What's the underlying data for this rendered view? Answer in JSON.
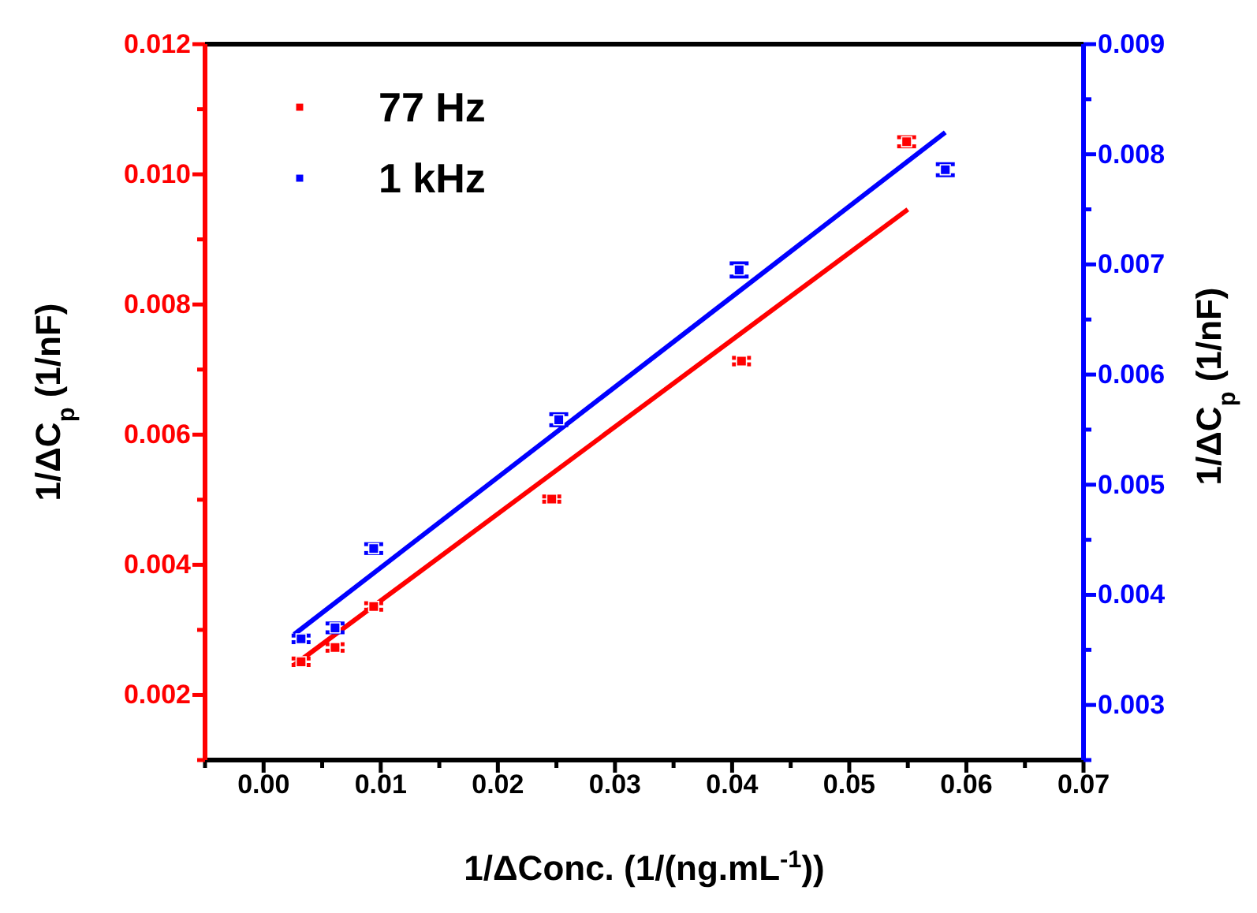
{
  "chart_data": {
    "type": "scatter",
    "xlabel": "1/ΔConc. (1/(ng.mL$^{-1}$))",
    "ylabel": "1/ΔC$_{p}$ (1/nF)",
    "y2label": "1/ΔC$_{p}$ (1/nF)",
    "xlim": [
      -0.005,
      0.07
    ],
    "xticks": [
      {
        "value": -0.005,
        "label": null
      },
      "0.00",
      {
        "value": 0.005,
        "label": null
      },
      {
        "value": 0.01,
        "label": "0.01"
      },
      {
        "value": 0.015,
        "label": null
      },
      {
        "value": 0.02,
        "label": "0.02"
      },
      {
        "value": 0.025,
        "label": null
      },
      {
        "value": 0.03,
        "label": "0.03"
      },
      {
        "value": 0.035,
        "label": null
      },
      {
        "value": 0.04,
        "label": "0.04"
      },
      {
        "value": 0.045,
        "label": null
      },
      {
        "value": 0.05,
        "label": "0.05"
      },
      {
        "value": 0.055,
        "label": null
      },
      {
        "value": 0.06,
        "label": "0.06"
      },
      {
        "value": 0.065,
        "label": null
      },
      {
        "value": 0.07,
        "label": "0.07"
      }
    ],
    "ylim": [
      0.001,
      0.012
    ],
    "yticks": [
      {
        "value": 0.001,
        "label": null
      },
      0.002,
      {
        "value": 0.003,
        "label": null
      },
      0.004,
      {
        "value": 0.005,
        "label": null
      },
      0.006,
      {
        "value": 0.007,
        "label": null
      },
      0.008,
      {
        "value": 0.009,
        "label": null
      },
      {
        "value": 0.01,
        "label": "0.010"
      },
      {
        "value": 0.011,
        "label": null
      },
      0.012
    ],
    "y2lim": [
      0.0025,
      0.009
    ],
    "y2ticks": [
      {
        "value": 0.0025,
        "label": null
      },
      0.003,
      {
        "value": 0.0035,
        "label": null
      },
      0.004,
      {
        "value": 0.0045,
        "label": null
      },
      0.005,
      {
        "value": 0.0055,
        "label": null
      },
      0.006,
      {
        "value": 0.0065,
        "label": null
      },
      0.007,
      {
        "value": 0.0075,
        "label": null
      },
      0.008,
      {
        "value": 0.0085,
        "label": null
      },
      0.009
    ],
    "marker": "square",
    "legend": "top left",
    "grid": false,
    "series": [
      {
        "name": "77 Hz",
        "color": "#ff0000",
        "axis": "y",
        "x": [
          0.0032,
          0.0061,
          0.0094,
          0.0246,
          0.0408,
          0.0549
        ],
        "values": [
          0.00251,
          0.00273,
          0.00336,
          0.00501,
          0.00713,
          0.0105
        ],
        "errors": [
          5e-05,
          5e-05,
          5e-05,
          4e-05,
          5e-05,
          7e-05
        ]
      },
      {
        "name": "1 kHz",
        "color": "#0000ff",
        "axis": "y2",
        "x": [
          0.0032,
          0.0061,
          0.0094,
          0.0252,
          0.0406,
          0.0582
        ],
        "values": [
          0.0036,
          0.0037,
          0.00442,
          0.00559,
          0.00695,
          0.00786
        ],
        "errors": [
          3e-05,
          4e-05,
          4e-05,
          5e-05,
          6e-05,
          5e-05
        ]
      },
      {
        "type": "line",
        "marker": "none",
        "color": "#ff0000",
        "axis": "y",
        "x": [
          0.0026,
          0.055
        ],
        "values": [
          0.00246,
          0.00946
        ]
      },
      {
        "type": "line",
        "marker": "none",
        "color": "#0000ff",
        "axis": "y2",
        "x": [
          0.0026,
          0.0582
        ],
        "values": [
          0.00364,
          0.0082
        ]
      }
    ]
  }
}
